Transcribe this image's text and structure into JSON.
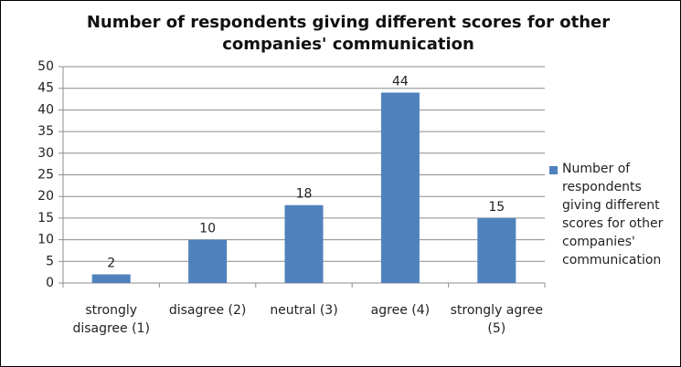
{
  "chart_data": {
    "type": "bar",
    "title": "Number of respondents giving different scores for other companies' communication",
    "categories": [
      "strongly disagree (1)",
      "disagree (2)",
      "neutral (3)",
      "agree (4)",
      "strongly agree (5)"
    ],
    "series": [
      {
        "name": "Number of respondents giving different scores for other companies' communication",
        "color": "#4f81bd",
        "values": [
          2,
          10,
          18,
          44,
          15
        ]
      }
    ],
    "ylim": [
      0,
      50
    ],
    "yticks": [
      0,
      5,
      10,
      15,
      20,
      25,
      30,
      35,
      40,
      45,
      50
    ],
    "grid": true,
    "legend": "right"
  }
}
